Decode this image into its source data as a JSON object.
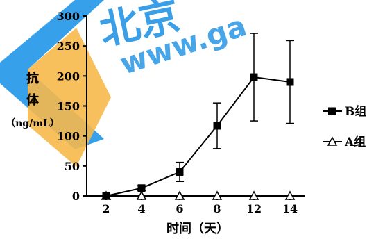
{
  "watermark": {
    "text": "www.ga",
    "logo_text": "北京",
    "color_blue": "#1a8fe3",
    "color_orange": "#f5b84a"
  },
  "chart_data": {
    "type": "line",
    "xlabel": "时间（天）",
    "ylabel_lines": [
      "抗",
      "体",
      "（ng/mL）"
    ],
    "categories": [
      "2",
      "4",
      "6",
      "8",
      "12",
      "14"
    ],
    "ylim": [
      0,
      300
    ],
    "yticks": [
      0,
      50,
      100,
      150,
      200,
      250,
      300
    ],
    "series": [
      {
        "name": "B组",
        "marker": "square-filled",
        "values": [
          0,
          13,
          40,
          117,
          198,
          190
        ],
        "err": [
          0,
          4,
          16,
          38,
          73,
          69
        ]
      },
      {
        "name": "A组",
        "marker": "triangle-open",
        "values": [
          0,
          0,
          0,
          0,
          0,
          0
        ],
        "err": [
          0,
          0,
          0,
          0,
          0,
          0
        ]
      }
    ],
    "legend_position": "right",
    "grid": false
  }
}
